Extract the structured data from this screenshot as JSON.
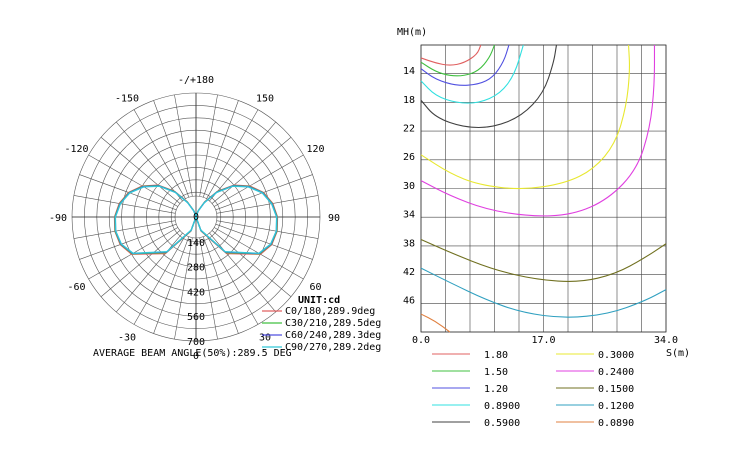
{
  "chart_data": [
    {
      "type": "polar",
      "angle_labels": [
        {
          "text": "-/+180",
          "angle": 180
        },
        {
          "text": "150",
          "angle": 150
        },
        {
          "text": "120",
          "angle": 120
        },
        {
          "text": "90",
          "angle": 90
        },
        {
          "text": "60",
          "angle": 60
        },
        {
          "text": "30",
          "angle": 30
        },
        {
          "text": "0",
          "angle": 0
        },
        {
          "text": "-30",
          "angle": -30
        },
        {
          "text": "-60",
          "angle": -60
        },
        {
          "text": "-90",
          "angle": -90
        },
        {
          "text": "-120",
          "angle": -120
        },
        {
          "text": "-150",
          "angle": -150
        }
      ],
      "radial_labels": [
        "0",
        "140",
        "280",
        "420",
        "560",
        "700"
      ],
      "rmax": 700,
      "unit_label": "UNIT:cd",
      "legend": [
        {
          "label": "C0/180,289.9deg",
          "color": "#e06060"
        },
        {
          "label": "C30/210,289.5deg",
          "color": "#40c040"
        },
        {
          "label": "C60/240,289.3deg",
          "color": "#5050e0"
        },
        {
          "label": "C90/270,289.2deg",
          "color": "#30c8d8"
        }
      ],
      "series": [
        {
          "name": "C0/180,289.9deg",
          "color": "#e06060",
          "angles": [
            0,
            20,
            40,
            60,
            70,
            80,
            90,
            100,
            110,
            120,
            130,
            140,
            150,
            160,
            170,
            180
          ],
          "values": [
            0,
            85,
            270,
            420,
            455,
            465,
            460,
            440,
            405,
            350,
            280,
            190,
            100,
            40,
            8,
            0
          ]
        },
        {
          "name": "C30/210,289.5deg",
          "color": "#40c040",
          "angles": [
            0,
            20,
            40,
            60,
            70,
            80,
            90,
            100,
            110,
            120,
            130,
            140,
            150,
            160,
            170,
            180
          ],
          "values": [
            0,
            82,
            262,
            415,
            452,
            463,
            458,
            437,
            402,
            346,
            276,
            186,
            96,
            38,
            7,
            0
          ]
        },
        {
          "name": "C60/240,289.3deg",
          "color": "#5050e0",
          "angles": [
            0,
            20,
            40,
            60,
            70,
            80,
            90,
            100,
            110,
            120,
            130,
            140,
            150,
            160,
            170,
            180
          ],
          "values": [
            0,
            80,
            258,
            412,
            450,
            461,
            456,
            435,
            400,
            343,
            273,
            183,
            94,
            36,
            6,
            0
          ]
        },
        {
          "name": "C90/270,289.2deg",
          "color": "#30c8d8",
          "angles": [
            0,
            20,
            40,
            60,
            70,
            80,
            90,
            100,
            110,
            120,
            130,
            140,
            150,
            160,
            170,
            180
          ],
          "values": [
            0,
            78,
            255,
            410,
            448,
            460,
            455,
            433,
            398,
            340,
            270,
            180,
            92,
            35,
            6,
            0
          ]
        }
      ],
      "caption": "AVERAGE BEAM ANGLE(50%):289.5 DEG"
    },
    {
      "type": "contour",
      "ylabel": "MH(m)",
      "xlabel": "S(m)",
      "y_ticks": [
        "14",
        "18",
        "22",
        "26",
        "30",
        "34",
        "38",
        "42",
        "46"
      ],
      "x_ticks": [
        "0.0",
        "17.0",
        "34.0"
      ],
      "xlim": [
        0,
        34
      ],
      "ylim": [
        10.5,
        50.5
      ],
      "legend": [
        {
          "label": "1.80",
          "color": "#e06060"
        },
        {
          "label": "1.50",
          "color": "#40c040"
        },
        {
          "label": "1.20",
          "color": "#5050e0"
        },
        {
          "label": "0.8900",
          "color": "#30e0e0"
        },
        {
          "label": "0.5900",
          "color": "#404040"
        },
        {
          "label": "0.3000",
          "color": "#e8e830"
        },
        {
          "label": "0.2400",
          "color": "#e040e0"
        },
        {
          "label": "0.1500",
          "color": "#707020"
        },
        {
          "label": "0.1200",
          "color": "#30a0c0"
        },
        {
          "label": "0.0890",
          "color": "#e08040"
        }
      ],
      "series": [
        {
          "name": "1.80",
          "color": "#e06060",
          "points": [
            [
              0,
              12.3
            ],
            [
              2,
              13.0
            ],
            [
              4,
              13.4
            ],
            [
              6,
              13.0
            ],
            [
              7.8,
              11.8
            ],
            [
              8.3,
              10.5
            ]
          ]
        },
        {
          "name": "1.50",
          "color": "#40c040",
          "points": [
            [
              0,
              12.9
            ],
            [
              2,
              14.2
            ],
            [
              4,
              14.8
            ],
            [
              6,
              14.8
            ],
            [
              8,
              14.1
            ],
            [
              9.5,
              12.3
            ],
            [
              10.2,
              10.5
            ]
          ]
        },
        {
          "name": "1.20",
          "color": "#5050e0",
          "points": [
            [
              0,
              13.8
            ],
            [
              2,
              15.3
            ],
            [
              5,
              16.2
            ],
            [
              8,
              16.0
            ],
            [
              10,
              15.0
            ],
            [
              11.5,
              12.8
            ],
            [
              12.2,
              10.5
            ]
          ]
        },
        {
          "name": "0.8900",
          "color": "#30e0e0",
          "points": [
            [
              0,
              15.5
            ],
            [
              2,
              17.6
            ],
            [
              5,
              18.6
            ],
            [
              8,
              18.6
            ],
            [
              11,
              17.3
            ],
            [
              13,
              14.6
            ],
            [
              14.2,
              10.5
            ]
          ]
        },
        {
          "name": "0.5900",
          "color": "#404040",
          "points": [
            [
              0,
              18.2
            ],
            [
              2,
              20.6
            ],
            [
              6,
              22.0
            ],
            [
              10,
              22.0
            ],
            [
              14,
              20.4
            ],
            [
              17,
              17.2
            ],
            [
              18.4,
              13.0
            ],
            [
              18.8,
              10.5
            ]
          ]
        },
        {
          "name": "0.3000",
          "color": "#e8e830",
          "points": [
            [
              0,
              25.8
            ],
            [
              4,
              28.4
            ],
            [
              8,
              30.0
            ],
            [
              14,
              30.7
            ],
            [
              20,
              29.8
            ],
            [
              24,
              27.8
            ],
            [
              27,
              24.2
            ],
            [
              28.5,
              19.0
            ],
            [
              29,
              14.0
            ],
            [
              28.8,
              10.5
            ]
          ]
        },
        {
          "name": "0.2400",
          "color": "#e040e0",
          "points": [
            [
              0,
              29.4
            ],
            [
              4,
              31.5
            ],
            [
              9,
              33.4
            ],
            [
              15,
              34.4
            ],
            [
              21,
              34.2
            ],
            [
              26,
              32.0
            ],
            [
              30,
              27.8
            ],
            [
              31.8,
              22.0
            ],
            [
              32.4,
              16.0
            ],
            [
              32.4,
              10.5
            ]
          ]
        },
        {
          "name": "0.1500",
          "color": "#707020",
          "points": [
            [
              0,
              37.6
            ],
            [
              4,
              39.4
            ],
            [
              10,
              41.8
            ],
            [
              16,
              43.2
            ],
            [
              22,
              43.6
            ],
            [
              27,
              42.4
            ],
            [
              31,
              40.2
            ],
            [
              34,
              38.2
            ]
          ]
        },
        {
          "name": "0.1200",
          "color": "#30a0c0",
          "points": [
            [
              0,
              41.6
            ],
            [
              4,
              43.6
            ],
            [
              9,
              46.0
            ],
            [
              14,
              47.8
            ],
            [
              20,
              48.6
            ],
            [
              26,
              48.0
            ],
            [
              31,
              46.2
            ],
            [
              34,
              44.6
            ]
          ]
        },
        {
          "name": "0.0890",
          "color": "#e08040",
          "points": [
            [
              0,
              48.0
            ],
            [
              2,
              49.0
            ],
            [
              4,
              50.5
            ]
          ]
        }
      ]
    }
  ]
}
